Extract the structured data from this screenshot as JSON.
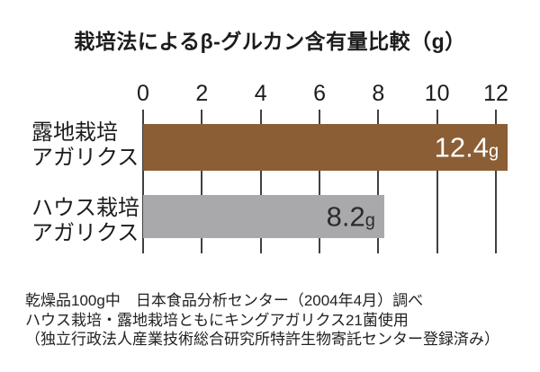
{
  "page": {
    "background": "#ffffff",
    "text_color": "#1c1c1c"
  },
  "chart_data": {
    "type": "bar",
    "orientation": "horizontal",
    "title": "栽培法によるβ-グルカン含有量比較（g）",
    "unit": "g",
    "categories": [
      "露地栽培アガリクス",
      "ハウス栽培アガリクス"
    ],
    "values": [
      12.4,
      8.2
    ],
    "x_ticks": [
      0,
      2,
      4,
      6,
      8,
      10,
      12
    ],
    "xlim": [
      0,
      12.6
    ],
    "grid": true,
    "grid_color": "#404040",
    "legend": "none",
    "rows": [
      {
        "label_lines": [
          "露地栽培",
          "アガリクス"
        ],
        "value": 12.4,
        "value_label": "12.4",
        "unit": "g",
        "bar_color": "#8b5e35",
        "value_color": "#ffffff"
      },
      {
        "label_lines": [
          "ハウス栽培",
          "アガリクス"
        ],
        "value": 8.2,
        "value_label": "8.2",
        "unit": "g",
        "bar_color": "#a9a9ab",
        "value_color": "#2b2b2b"
      }
    ]
  },
  "footnotes": {
    "line1": "乾燥品100g中　日本食品分析センター（2004年4月）調べ",
    "line2": "ハウス栽培・露地栽培ともにキングアガリクス21菌使用",
    "line3": "（独立行政法人産業技術総合研究所特許生物寄託センター登録済み）"
  }
}
